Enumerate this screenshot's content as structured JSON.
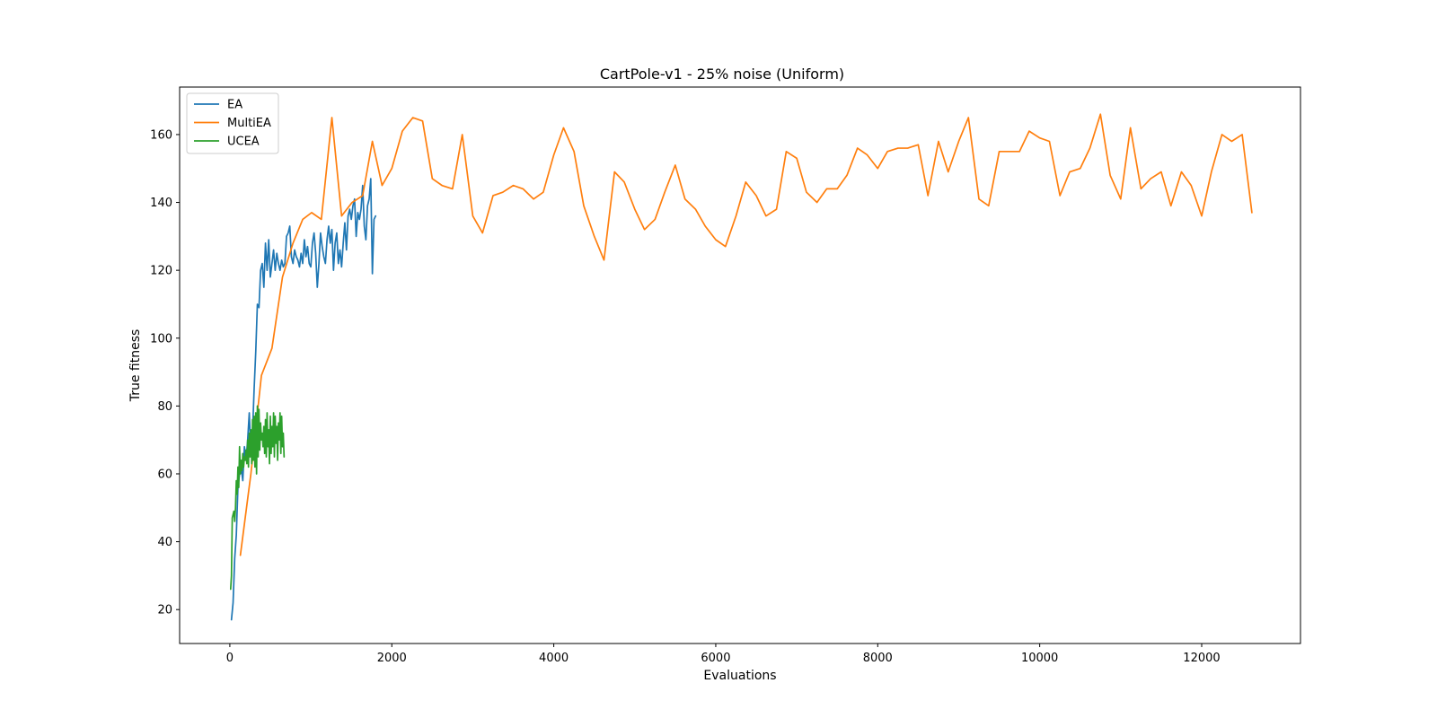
{
  "chart_data": {
    "type": "line",
    "title": "CartPole-v1 - 25% noise (Uniform)",
    "xlabel": "Evaluations",
    "ylabel": "True fitness",
    "xlim": [
      -620,
      13220
    ],
    "ylim": [
      10,
      174
    ],
    "xticks": [
      0,
      2000,
      4000,
      6000,
      8000,
      10000,
      12000
    ],
    "yticks": [
      20,
      40,
      60,
      80,
      100,
      120,
      140,
      160
    ],
    "grid": false,
    "legend_position": "top-left",
    "series": [
      {
        "name": "EA",
        "color": "#1f77b4",
        "x": [
          20,
          40,
          60,
          80,
          100,
          120,
          140,
          160,
          180,
          200,
          220,
          240,
          260,
          280,
          300,
          320,
          340,
          360,
          380,
          400,
          420,
          440,
          460,
          480,
          500,
          520,
          540,
          560,
          580,
          600,
          620,
          640,
          660,
          680,
          700,
          720,
          740,
          760,
          780,
          800,
          820,
          840,
          860,
          880,
          900,
          920,
          940,
          960,
          980,
          1000,
          1020,
          1040,
          1060,
          1080,
          1100,
          1120,
          1140,
          1160,
          1180,
          1200,
          1220,
          1240,
          1260,
          1280,
          1300,
          1320,
          1340,
          1360,
          1380,
          1400,
          1420,
          1440,
          1460,
          1480,
          1500,
          1520,
          1540,
          1560,
          1580,
          1600,
          1620,
          1640,
          1660,
          1680,
          1700,
          1720,
          1740,
          1760,
          1780,
          1800
        ],
        "y": [
          17,
          22,
          35,
          42,
          56,
          60,
          62,
          58,
          68,
          64,
          70,
          78,
          66,
          72,
          85,
          96,
          110,
          109,
          120,
          122,
          115,
          128,
          120,
          129,
          118,
          122,
          126,
          120,
          125,
          122,
          120,
          123,
          121,
          122,
          130,
          131,
          133,
          124,
          122,
          126,
          124,
          123,
          121,
          125,
          122,
          129,
          124,
          127,
          122,
          121,
          128,
          131,
          125,
          115,
          122,
          131,
          127,
          124,
          122,
          129,
          133,
          128,
          132,
          120,
          128,
          131,
          122,
          126,
          121,
          128,
          134,
          126,
          136,
          138,
          135,
          139,
          141,
          130,
          137,
          135,
          138,
          145,
          133,
          129,
          139,
          141,
          147,
          119,
          135,
          136
        ]
      },
      {
        "name": "MultiEA",
        "color": "#ff7f0e",
        "x": [
          130,
          260,
          390,
          520,
          650,
          780,
          900,
          1010,
          1130,
          1260,
          1380,
          1510,
          1640,
          1760,
          1880,
          2000,
          2130,
          2260,
          2380,
          2500,
          2620,
          2750,
          2870,
          3000,
          3120,
          3250,
          3370,
          3500,
          3620,
          3750,
          3870,
          4000,
          4120,
          4250,
          4370,
          4500,
          4620,
          4750,
          4870,
          5000,
          5120,
          5250,
          5370,
          5500,
          5620,
          5750,
          5870,
          6000,
          6120,
          6250,
          6370,
          6500,
          6620,
          6750,
          6870,
          7000,
          7120,
          7250,
          7370,
          7500,
          7620,
          7750,
          7870,
          8000,
          8120,
          8250,
          8370,
          8500,
          8620,
          8750,
          8870,
          9000,
          9120,
          9250,
          9370,
          9500,
          9620,
          9750,
          9870,
          10000,
          10120,
          10250,
          10370,
          10500,
          10620,
          10750,
          10870,
          11000,
          11120,
          11250,
          11370,
          11500,
          11620,
          11750,
          11870,
          12000,
          12120,
          12250,
          12370,
          12500,
          12620
        ],
        "y": [
          36,
          60,
          89,
          97,
          118,
          128,
          135,
          137,
          135,
          165,
          136,
          140,
          142,
          158,
          145,
          150,
          161,
          165,
          164,
          147,
          145,
          144,
          160,
          136,
          131,
          142,
          143,
          145,
          144,
          141,
          143,
          154,
          162,
          155,
          139,
          130,
          123,
          149,
          146,
          138,
          132,
          135,
          143,
          151,
          141,
          138,
          133,
          129,
          127,
          136,
          146,
          142,
          136,
          138,
          155,
          153,
          143,
          140,
          144,
          144,
          148,
          156,
          154,
          150,
          155,
          156,
          156,
          157,
          142,
          158,
          149,
          158,
          165,
          141,
          139,
          155,
          155,
          155,
          161,
          159,
          158,
          142,
          149,
          150,
          156,
          166,
          148,
          141,
          162,
          144,
          147,
          149,
          139,
          149,
          145,
          136,
          149,
          160,
          158,
          160,
          137
        ]
      },
      {
        "name": "UCEA",
        "color": "#2ca02c",
        "x": [
          10,
          20,
          30,
          40,
          50,
          60,
          70,
          80,
          90,
          100,
          110,
          120,
          130,
          140,
          150,
          160,
          170,
          180,
          190,
          200,
          210,
          220,
          230,
          240,
          250,
          260,
          270,
          280,
          290,
          300,
          310,
          320,
          330,
          340,
          350,
          360,
          370,
          380,
          390,
          400,
          410,
          420,
          430,
          440,
          450,
          460,
          470,
          480,
          490,
          500,
          510,
          520,
          530,
          540,
          550,
          560,
          570,
          580,
          590,
          600,
          610,
          620,
          630,
          640,
          650,
          660,
          670
        ],
        "y": [
          26,
          30,
          47,
          48,
          49,
          46,
          50,
          58,
          54,
          62,
          56,
          68,
          60,
          64,
          61,
          66,
          62,
          65,
          64,
          67,
          63,
          70,
          62,
          72,
          65,
          73,
          63,
          76,
          64,
          77,
          62,
          78,
          60,
          80,
          65,
          79,
          67,
          75,
          70,
          72,
          68,
          74,
          66,
          76,
          65,
          78,
          68,
          73,
          63,
          77,
          66,
          74,
          68,
          78,
          65,
          77,
          69,
          74,
          64,
          75,
          70,
          78,
          66,
          77,
          68,
          72,
          65
        ]
      }
    ]
  }
}
